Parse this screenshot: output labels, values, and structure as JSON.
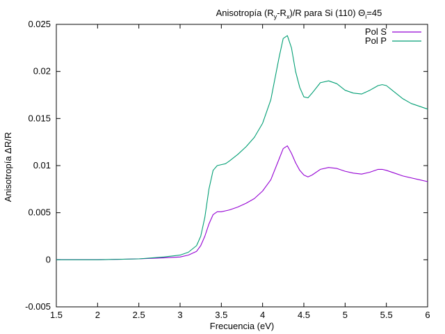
{
  "chart_data": {
    "type": "line",
    "title": "Anisotropía (R",
    "title_sub1": "y",
    "title_mid": "-R",
    "title_sub2": "x",
    "title_tail": ")/R para Si (110) Θ",
    "title_sub3": "i",
    "title_end": "=45",
    "xlabel": "Frecuencia (eV)",
    "ylabel": "Anisotropía ΔR/R",
    "xlim": [
      1.5,
      6
    ],
    "ylim": [
      -0.005,
      0.025
    ],
    "xticks": [
      "1.5",
      "2",
      "2.5",
      "3",
      "3.5",
      "4",
      "4.5",
      "5",
      "5.5",
      "6"
    ],
    "yticks": [
      "-0.005",
      "0",
      "0.005",
      "0.01",
      "0.015",
      "0.02",
      "0.025"
    ],
    "grid": false,
    "legend_position": "top-right",
    "series": [
      {
        "name": "Pol S",
        "color": "#9400d3",
        "x": [
          1.5,
          2.0,
          2.5,
          2.8,
          3.0,
          3.1,
          3.2,
          3.25,
          3.3,
          3.35,
          3.4,
          3.45,
          3.5,
          3.55,
          3.6,
          3.7,
          3.8,
          3.9,
          4.0,
          4.1,
          4.2,
          4.25,
          4.3,
          4.35,
          4.4,
          4.45,
          4.5,
          4.55,
          4.6,
          4.7,
          4.8,
          4.9,
          5.0,
          5.1,
          5.2,
          5.3,
          5.4,
          5.45,
          5.5,
          5.6,
          5.7,
          5.8,
          5.9,
          6.0
        ],
        "y": [
          0.0,
          0.0,
          0.0001,
          0.0002,
          0.0003,
          0.0005,
          0.0009,
          0.0015,
          0.0025,
          0.0038,
          0.0048,
          0.0051,
          0.0051,
          0.0052,
          0.0053,
          0.0056,
          0.006,
          0.0065,
          0.0073,
          0.0085,
          0.0107,
          0.0118,
          0.0121,
          0.0113,
          0.0103,
          0.0095,
          0.009,
          0.0088,
          0.009,
          0.0096,
          0.0098,
          0.0097,
          0.0094,
          0.0092,
          0.0091,
          0.0093,
          0.0096,
          0.0096,
          0.0095,
          0.0092,
          0.0089,
          0.0087,
          0.0085,
          0.0083
        ]
      },
      {
        "name": "Pol P",
        "color": "#009e73",
        "x": [
          1.5,
          2.0,
          2.5,
          2.8,
          3.0,
          3.1,
          3.2,
          3.25,
          3.3,
          3.35,
          3.4,
          3.45,
          3.5,
          3.55,
          3.6,
          3.7,
          3.8,
          3.9,
          4.0,
          4.1,
          4.2,
          4.25,
          4.3,
          4.35,
          4.4,
          4.45,
          4.5,
          4.55,
          4.6,
          4.7,
          4.8,
          4.9,
          5.0,
          5.1,
          5.2,
          5.3,
          5.4,
          5.45,
          5.5,
          5.6,
          5.7,
          5.8,
          5.9,
          6.0
        ],
        "y": [
          0.0,
          0.0,
          0.0001,
          0.0003,
          0.0005,
          0.0008,
          0.0015,
          0.0025,
          0.0045,
          0.0075,
          0.0095,
          0.01,
          0.0101,
          0.0102,
          0.0105,
          0.0112,
          0.012,
          0.013,
          0.0145,
          0.017,
          0.0215,
          0.0235,
          0.0238,
          0.0225,
          0.02,
          0.0183,
          0.0173,
          0.0172,
          0.0177,
          0.0188,
          0.019,
          0.0187,
          0.018,
          0.0177,
          0.0176,
          0.018,
          0.0185,
          0.0186,
          0.0185,
          0.0178,
          0.0171,
          0.0166,
          0.0163,
          0.016
        ]
      }
    ]
  }
}
